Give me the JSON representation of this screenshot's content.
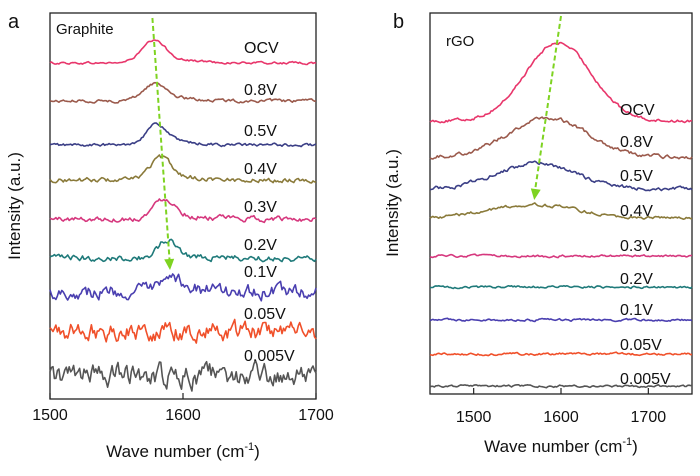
{
  "chart_data": [
    {
      "type": "line",
      "panel_letter": "a",
      "inset_label": "Graphite",
      "xlabel_main": "Wave number (cm",
      "xlabel_sup": "-1",
      "xlabel_end": ")",
      "ylabel": "Intensity (a.u.)",
      "xlim": [
        1500,
        1700
      ],
      "x_ticks": [
        1500,
        1600,
        1700
      ],
      "y_ticks_shown": false,
      "stacked_offset_spectra": true,
      "arrow_color": "#7ed321",
      "trend_arrow": {
        "from_x": 1577,
        "to_x": 1590
      },
      "series": [
        {
          "name": "OCV",
          "color": "#e8366b",
          "peak_x": 1578,
          "peak_height": 0.7,
          "peak_width": 9,
          "noise": 0.03,
          "tail": "right"
        },
        {
          "name": "0.8V",
          "color": "#9b5a4c",
          "peak_x": 1579,
          "peak_height": 0.55,
          "peak_width": 9,
          "noise": 0.04,
          "tail": "right"
        },
        {
          "name": "0.5V",
          "color": "#3b3f86",
          "peak_x": 1580,
          "peak_height": 0.65,
          "peak_width": 8,
          "noise": 0.04,
          "tail": "right"
        },
        {
          "name": "0.4V",
          "color": "#8a7a3a",
          "peak_x": 1583,
          "peak_height": 0.7,
          "peak_width": 8,
          "noise": 0.06,
          "tail": "right"
        },
        {
          "name": "0.3V",
          "color": "#d6387e",
          "peak_x": 1586,
          "peak_height": 0.65,
          "peak_width": 8,
          "noise": 0.07,
          "tail": "right"
        },
        {
          "name": "0.2V",
          "color": "#1f7a7a",
          "peak_x": 1588,
          "peak_height": 0.55,
          "peak_width": 7,
          "noise": 0.08,
          "tail": "right"
        },
        {
          "name": "0.1V",
          "color": "#4a3fb0",
          "peak_x": 1595,
          "peak_height": 0.35,
          "peak_width": 10,
          "noise": 0.18,
          "tail": "right"
        },
        {
          "name": "0.05V",
          "color": "#f0502a",
          "peak_x": 1600,
          "peak_height": 0.0,
          "peak_width": 10,
          "noise": 0.25,
          "tail": "right"
        },
        {
          "name": "0.005V",
          "color": "#555555",
          "peak_x": 1600,
          "peak_height": 0.0,
          "peak_width": 10,
          "noise": 0.3,
          "tail": "right"
        }
      ]
    },
    {
      "type": "line",
      "panel_letter": "b",
      "inset_label": "rGO",
      "xlabel_main": "Wave number (cm",
      "xlabel_sup": "-1",
      "xlabel_end": ")",
      "ylabel": "Intensity (a.u.)",
      "xlim": [
        1450,
        1750
      ],
      "x_ticks": [
        1500,
        1600,
        1700
      ],
      "y_ticks_shown": false,
      "stacked_offset_spectra": true,
      "arrow_color": "#7ed321",
      "trend_arrow": {
        "from_x": 1600,
        "to_x": 1570
      },
      "series": [
        {
          "name": "OCV",
          "color": "#e8366b",
          "peak_x": 1597,
          "peak_height": 2.6,
          "peak_width": 38,
          "noise": 0.04,
          "tail": "none"
        },
        {
          "name": "0.8V",
          "color": "#9b5a4c",
          "peak_x": 1585,
          "peak_height": 1.3,
          "peak_width": 45,
          "noise": 0.05,
          "tail": "none"
        },
        {
          "name": "0.5V",
          "color": "#3b3f86",
          "peak_x": 1572,
          "peak_height": 0.85,
          "peak_width": 45,
          "noise": 0.05,
          "tail": "none"
        },
        {
          "name": "0.4V",
          "color": "#8a7a3a",
          "peak_x": 1568,
          "peak_height": 0.45,
          "peak_width": 50,
          "noise": 0.04,
          "tail": "none"
        },
        {
          "name": "0.3V",
          "color": "#d6387e",
          "peak_x": 1560,
          "peak_height": 0.0,
          "peak_width": 50,
          "noise": 0.03,
          "tail": "none"
        },
        {
          "name": "0.2V",
          "color": "#1f7a7a",
          "peak_x": 1560,
          "peak_height": 0.0,
          "peak_width": 50,
          "noise": 0.03,
          "tail": "none"
        },
        {
          "name": "0.1V",
          "color": "#4a3fb0",
          "peak_x": 1560,
          "peak_height": 0.0,
          "peak_width": 50,
          "noise": 0.03,
          "tail": "none"
        },
        {
          "name": "0.05V",
          "color": "#f0502a",
          "peak_x": 1560,
          "peak_height": 0.0,
          "peak_width": 50,
          "noise": 0.03,
          "tail": "none"
        },
        {
          "name": "0.005V",
          "color": "#555555",
          "peak_x": 1560,
          "peak_height": 0.0,
          "peak_width": 50,
          "noise": 0.03,
          "tail": "none"
        }
      ]
    }
  ]
}
